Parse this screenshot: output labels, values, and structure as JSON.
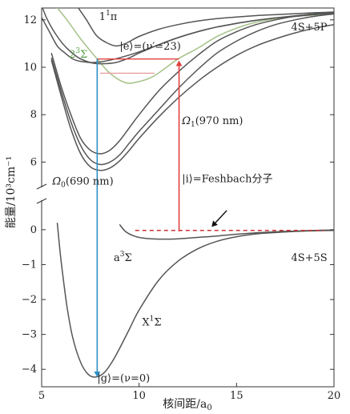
{
  "chart_data": {
    "type": "line",
    "xlabel": "核间距/a",
    "xlabel_sub": "0",
    "ylabel": "能量/10³cm⁻¹",
    "xlim": [
      5,
      20
    ],
    "x_ticks": [
      5,
      10,
      15,
      20
    ],
    "y_upper_ticks": [
      6,
      8,
      10,
      12
    ],
    "y_lower_ticks": [
      0,
      -1,
      -2,
      -3,
      -4
    ],
    "ylim_upper": [
      5,
      12.5
    ],
    "ylim_lower": [
      -4.5,
      0.8
    ],
    "axis_break": true,
    "series": [
      {
        "id": "X1Sigma",
        "color": "#555555",
        "x": [
          5.8,
          6.0,
          6.3,
          6.6,
          7.0,
          7.4,
          7.8,
          8.2,
          8.6,
          9.0,
          9.5,
          10,
          11,
          12,
          13,
          14,
          15,
          16,
          17,
          18,
          19,
          20
        ],
        "y": [
          0.2,
          -0.9,
          -2.2,
          -3.1,
          -3.8,
          -4.15,
          -4.22,
          -4.1,
          -3.8,
          -3.4,
          -2.85,
          -2.3,
          -1.45,
          -0.9,
          -0.55,
          -0.33,
          -0.2,
          -0.12,
          -0.08,
          -0.05,
          -0.03,
          -0.02
        ]
      },
      {
        "id": "a3Sigma",
        "color": "#555555",
        "x": [
          9.0,
          9.3,
          9.7,
          10.2,
          11,
          12,
          13,
          14,
          15,
          16,
          17,
          18,
          19,
          20
        ],
        "y": [
          0.15,
          -0.05,
          -0.17,
          -0.24,
          -0.27,
          -0.26,
          -0.22,
          -0.18,
          -0.13,
          -0.09,
          -0.06,
          -0.04,
          -0.02,
          -0.01
        ]
      },
      {
        "id": "2_3Sigma",
        "color": "#a9c58e",
        "x": [
          5.7,
          6.3,
          7.0,
          7.8,
          8.5,
          9.3,
          10,
          10.8,
          12,
          13,
          14,
          15,
          16,
          17,
          18,
          20
        ],
        "y": [
          12.6,
          12.0,
          11.2,
          10.4,
          9.75,
          9.35,
          9.4,
          9.65,
          10.35,
          10.8,
          11.3,
          11.65,
          11.9,
          12.05,
          12.15,
          12.25
        ]
      },
      {
        "id": "1_1Pi",
        "color": "#555555",
        "x": [
          6.8,
          7.3,
          7.8,
          8.3,
          8.8,
          9.3,
          10,
          11,
          12,
          13,
          14,
          15,
          16,
          17,
          18,
          19,
          20
        ],
        "y": [
          12.6,
          12.0,
          11.35,
          11.05,
          10.9,
          11.0,
          11.3,
          11.6,
          11.8,
          11.95,
          12.05,
          12.12,
          12.18,
          12.22,
          12.26,
          12.3,
          12.33
        ]
      },
      {
        "id": "c1",
        "color": "#555555",
        "x": [
          5.5,
          6.0,
          6.5,
          7.0,
          7.5,
          8.0,
          8.5,
          9.0,
          9.5,
          10,
          11,
          12,
          13,
          14,
          15,
          16,
          17,
          18,
          19,
          20
        ],
        "y": [
          10.6,
          9.2,
          8.0,
          7.0,
          6.5,
          6.35,
          6.5,
          6.9,
          7.45,
          8.0,
          9.0,
          9.8,
          10.5,
          11.1,
          11.5,
          11.8,
          12.0,
          12.15,
          12.25,
          12.3
        ]
      },
      {
        "id": "c2",
        "color": "#555555",
        "x": [
          5.5,
          6.0,
          6.5,
          7.0,
          7.5,
          8.0,
          8.5,
          9.0,
          9.5,
          10,
          11,
          12,
          13,
          14,
          15,
          16,
          17,
          18,
          19,
          20
        ],
        "y": [
          10.3,
          8.8,
          7.4,
          6.35,
          5.8,
          5.65,
          5.75,
          6.05,
          6.5,
          7.0,
          7.9,
          8.7,
          9.4,
          10.0,
          10.5,
          10.9,
          11.2,
          11.45,
          11.65,
          11.8
        ]
      },
      {
        "id": "c3",
        "color": "#555555",
        "x": [
          5.5,
          6.0,
          6.5,
          7.0,
          7.5,
          8.0,
          8.5,
          9.0,
          9.5,
          10,
          11,
          12,
          13,
          14,
          15,
          16,
          17,
          18,
          19,
          20
        ],
        "y": [
          10.4,
          9.0,
          7.7,
          6.7,
          6.1,
          5.9,
          6.0,
          6.3,
          6.8,
          7.3,
          8.2,
          9.1,
          9.9,
          10.6,
          11.1,
          11.5,
          11.8,
          12.0,
          12.15,
          12.25
        ]
      },
      {
        "id": "c4",
        "color": "#555555",
        "x": [
          5.0,
          5.3,
          5.8,
          6.3,
          6.9,
          7.5,
          8.0,
          8.8,
          9.5,
          10,
          11,
          12,
          13,
          14,
          15,
          16,
          17,
          18,
          19,
          20
        ],
        "y": [
          12.6,
          12.0,
          11.3,
          10.8,
          10.4,
          10.2,
          10.15,
          10.2,
          10.4,
          10.6,
          10.95,
          11.25,
          11.5,
          11.7,
          11.85,
          11.98,
          12.08,
          12.17,
          12.25,
          12.3
        ]
      },
      {
        "id": "c5",
        "color": "#555555",
        "x": [
          5.0,
          5.4,
          5.8,
          6.2,
          6.6,
          7.0,
          7.6,
          8.2,
          9.0,
          10,
          11,
          12,
          13,
          14,
          15,
          16,
          17,
          18,
          19,
          20
        ],
        "y": [
          12.1,
          11.5,
          10.9,
          10.6,
          10.35,
          10.25,
          10.2,
          10.25,
          10.4,
          10.65,
          10.95,
          11.25,
          11.5,
          11.7,
          11.85,
          11.98,
          12.08,
          12.15,
          12.22,
          12.28
        ]
      }
    ],
    "transitions": [
      {
        "id": "omega0-arrow",
        "color": "#2e8fc4",
        "x": 7.85,
        "y_from": 10.35,
        "y_to": -4.2,
        "label": "Ω",
        "label_sub": "0",
        "label_rest": "(690 nm)",
        "label_x": 5.55,
        "label_y": 5.05
      },
      {
        "id": "omega1-arrow",
        "color": "#e04040",
        "x": 12.05,
        "y_from": -0.05,
        "y_to": 10.25,
        "label": "Ω",
        "label_sub": "1",
        "label_rest": "(970 nm)",
        "label_x": 12.2,
        "label_y": 7.6
      }
    ],
    "levels": [
      {
        "id": "e-level",
        "color": "#e04040",
        "x_from": 7.85,
        "x_to": 12.05,
        "y": 10.35,
        "label": "|e⟩=(ν′=23)",
        "label_x": 9.0,
        "label_y": 10.75
      },
      {
        "id": "vib-level",
        "color": "#e8a0a0",
        "x_from": 8.0,
        "x_to": 10.8,
        "y": 9.75
      },
      {
        "id": "dashed-level",
        "color": "#cc3333",
        "x_from": 9.8,
        "x_to": 19.5,
        "y": -0.02,
        "dashed": true
      }
    ],
    "annotations": [
      {
        "id": "label-1pi",
        "text": "1",
        "sup": "1",
        "rest": "π",
        "x": 7.95,
        "y": 12.0
      },
      {
        "id": "label-2sigma",
        "text": "2",
        "sup": "3",
        "rest": "Σ",
        "x": 6.4,
        "y": 10.4,
        "color": "#5aa04a"
      },
      {
        "id": "label-4s5p",
        "text": "4S+5P",
        "x": 17.8,
        "y": 11.55
      },
      {
        "id": "label-feshbach",
        "text": "|i⟩=Feshbach分子",
        "x": 12.2,
        "y": 5.15
      },
      {
        "id": "label-a3sigma",
        "text": "a",
        "sup": "3",
        "rest": "Σ",
        "x": 8.7,
        "y": -0.9
      },
      {
        "id": "label-4s5s",
        "text": "4S+5S",
        "x": 17.8,
        "y": -0.9
      },
      {
        "id": "label-x1sigma",
        "text": "X",
        "sup": "1",
        "rest": "Σ",
        "x": 10.15,
        "y": -2.75
      },
      {
        "id": "label-g",
        "text": "|g⟩=(ν=0)",
        "x": 7.85,
        "y": -4.35
      }
    ],
    "feshbach_arrow": {
      "from": [
        14.5,
        0.55
      ],
      "to": [
        13.75,
        0.1
      ]
    }
  }
}
